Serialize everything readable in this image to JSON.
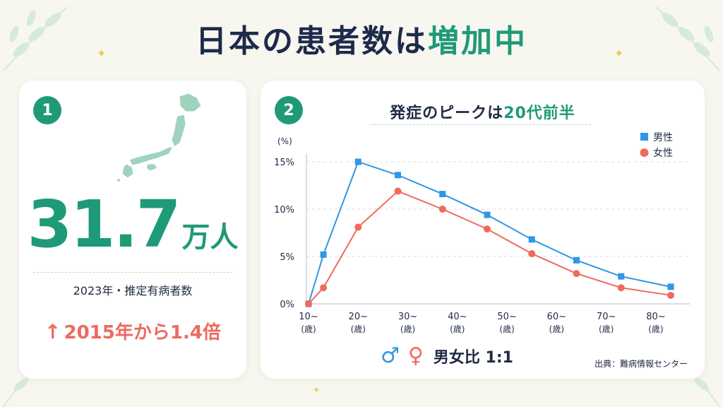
{
  "header": {
    "title_main": "日本の患者数は",
    "title_accent": "増加中"
  },
  "left_card": {
    "badge": "1",
    "value": "31.7",
    "unit": "万人",
    "caption": "2023年・推定有病者数",
    "growth_arrow": "↑",
    "growth_text": "2015年から1.4倍",
    "map_icon": "japan-map-icon"
  },
  "right_card": {
    "badge": "2",
    "chart_title_main": "発症のピークは",
    "chart_title_accent": "20代前半",
    "ratio_text": "男女比 1:1",
    "male_symbol": "♂",
    "female_symbol": "♀",
    "source": "出典：難病情報センター"
  },
  "colors": {
    "accent": "#1f9a78",
    "male": "#2f97e3",
    "female": "#ee6a5f",
    "growth": "#ee6a5f"
  },
  "chart_data": {
    "type": "line",
    "ylabel": "(%)",
    "ylim": [
      0,
      15
    ],
    "y_ticks": [
      "0%",
      "5%",
      "10%",
      "15%"
    ],
    "y_tick_values": [
      0,
      5,
      10,
      15
    ],
    "categories": [
      "10~",
      "20~",
      "30~",
      "40~",
      "50~",
      "60~",
      "70~",
      "80~"
    ],
    "category_sublabel": "(歳)",
    "x": [
      10,
      13,
      20,
      28,
      37,
      46,
      55,
      64,
      73,
      83
    ],
    "xlim": [
      10,
      83
    ],
    "tick_x": [
      10,
      20,
      30,
      40,
      50,
      60,
      70,
      80
    ],
    "legend_position": "top-right",
    "grid": true,
    "series": [
      {
        "name": "男性",
        "marker": "square",
        "color": "#2f97e3",
        "values": [
          0,
          5.2,
          15.0,
          13.6,
          11.6,
          9.4,
          6.8,
          4.6,
          2.9,
          1.8
        ]
      },
      {
        "name": "女性",
        "marker": "circle",
        "color": "#ee6a5f",
        "values": [
          0,
          1.7,
          8.1,
          11.9,
          10.0,
          7.9,
          5.3,
          3.2,
          1.7,
          0.9
        ]
      }
    ]
  }
}
